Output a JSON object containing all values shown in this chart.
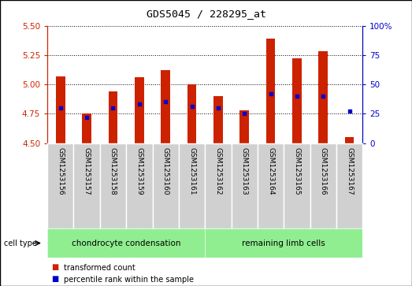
{
  "title": "GDS5045 / 228295_at",
  "samples": [
    "GSM1253156",
    "GSM1253157",
    "GSM1253158",
    "GSM1253159",
    "GSM1253160",
    "GSM1253161",
    "GSM1253162",
    "GSM1253163",
    "GSM1253164",
    "GSM1253165",
    "GSM1253166",
    "GSM1253167"
  ],
  "bar_values": [
    5.07,
    4.75,
    4.94,
    5.06,
    5.12,
    5.0,
    4.9,
    4.78,
    5.39,
    5.22,
    5.28,
    4.55
  ],
  "base_value": 4.5,
  "percentile_values": [
    30,
    22,
    30,
    33,
    35,
    31,
    30,
    25,
    42,
    40,
    40,
    27
  ],
  "ylim_left": [
    4.5,
    5.5
  ],
  "yticks_left": [
    4.5,
    4.75,
    5.0,
    5.25,
    5.5
  ],
  "ylim_right": [
    0,
    100
  ],
  "yticks_right": [
    0,
    25,
    50,
    75,
    100
  ],
  "bar_color": "#cc2200",
  "dot_color": "#0000cc",
  "background_plot": "#ffffff",
  "background_labels": "#d0d0d0",
  "background_celltype": "#90ee90",
  "celltype_label": "cell type",
  "groups": [
    {
      "label": "chondrocyte condensation",
      "count": 6
    },
    {
      "label": "remaining limb cells",
      "count": 6
    }
  ],
  "legend_items": [
    {
      "color": "#cc2200",
      "label": "transformed count"
    },
    {
      "color": "#0000cc",
      "label": "percentile rank within the sample"
    }
  ],
  "bar_width": 0.35,
  "gridline_style": "dotted"
}
